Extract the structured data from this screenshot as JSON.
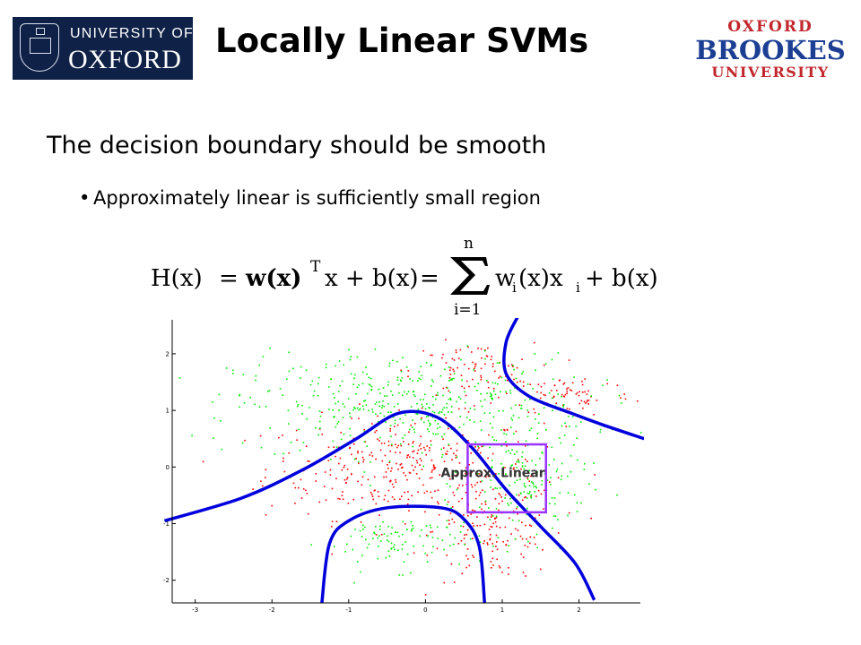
{
  "logos": {
    "oxford": {
      "line1": "UNIVERSITY OF",
      "line2": "OXFORD",
      "bg": "#0f2147"
    },
    "brookes": {
      "line1": "OXFORD",
      "line2": "BROOKES",
      "line3": "UNIVERSITY",
      "red": "#c2272d",
      "blue": "#1c3f94"
    }
  },
  "slide": {
    "title": "Locally Linear SVMs",
    "heading": "The decision boundary should be smooth",
    "bullet": "Approximately linear is sufficiently small region",
    "bullet_marker": "•"
  },
  "formula": {
    "lhs": "H(x)",
    "eq1": "=",
    "term1": "w(x)",
    "sup_T": "T",
    "term2": "x + b(x)",
    "eq2": "=",
    "sum_upper": "n",
    "sum_lower": "i=1",
    "sum_body": "w",
    "sum_body_sub": "i",
    "sum_body2": "(x)x",
    "sum_body2_sub": "i",
    "tail": "+ b(x)"
  },
  "chart_data": {
    "type": "scatter",
    "title": "",
    "xlabel": "",
    "ylabel": "",
    "xlim": [
      -3.3,
      2.8
    ],
    "ylim": [
      -2.4,
      2.6
    ],
    "x_ticks": [
      "-3",
      "-2",
      "-1",
      "0",
      "1",
      "2"
    ],
    "x_tick_values": [
      -3,
      -2,
      -1,
      0,
      1,
      2
    ],
    "y_ticks": [
      "2",
      "1",
      "0",
      "-1",
      "-2"
    ],
    "y_tick_values": [
      2,
      1,
      0,
      -1,
      -2
    ],
    "series": [
      {
        "color": "#ff0000",
        "clusters": [
          {
            "cx": -0.3,
            "cy": 0.0,
            "rx": 1.8,
            "ry": 0.9
          },
          {
            "cx": 0.9,
            "cy": -1.1,
            "rx": 0.8,
            "ry": 0.9
          },
          {
            "cx": 0.6,
            "cy": 1.7,
            "rx": 0.8,
            "ry": 0.5
          },
          {
            "cx": 1.9,
            "cy": 1.3,
            "rx": 0.8,
            "ry": 0.4
          }
        ]
      },
      {
        "color": "#00ee00",
        "clusters": [
          {
            "cx": -0.2,
            "cy": 1.1,
            "rx": 2.3,
            "ry": 0.9
          },
          {
            "cx": -0.3,
            "cy": -1.3,
            "rx": 1.0,
            "ry": 0.5
          },
          {
            "cx": 1.3,
            "cy": -0.3,
            "rx": 0.8,
            "ry": 0.9
          }
        ]
      }
    ],
    "boundaries": [
      {
        "name": "outer",
        "points": [
          [
            -3.4,
            -0.95
          ],
          [
            -2.4,
            -0.55
          ],
          [
            -1.6,
            -0.05
          ],
          [
            -0.9,
            0.5
          ],
          [
            -0.35,
            0.95
          ],
          [
            0.15,
            0.88
          ],
          [
            0.6,
            0.35
          ],
          [
            1.05,
            -0.4
          ],
          [
            1.5,
            -1.05
          ],
          [
            1.95,
            -1.7
          ],
          [
            2.2,
            -2.35
          ]
        ]
      },
      {
        "name": "inner",
        "points": [
          [
            -1.35,
            -2.4
          ],
          [
            -1.25,
            -1.35
          ],
          [
            -1.0,
            -0.95
          ],
          [
            -0.5,
            -0.72
          ],
          [
            0.2,
            -0.72
          ],
          [
            0.5,
            -0.92
          ],
          [
            0.7,
            -1.4
          ],
          [
            0.77,
            -2.4
          ]
        ]
      },
      {
        "name": "right",
        "points": [
          [
            1.2,
            2.65
          ],
          [
            1.05,
            2.2
          ],
          [
            1.05,
            1.65
          ],
          [
            1.35,
            1.25
          ],
          [
            1.9,
            0.95
          ],
          [
            2.3,
            0.75
          ],
          [
            2.85,
            0.5
          ]
        ]
      }
    ],
    "box": {
      "x0": 0.55,
      "x1": 1.57,
      "y0": -0.8,
      "y1": 0.4,
      "color": "#9933ff"
    },
    "annotation": {
      "text": "Approx. Linear",
      "x": 0.2,
      "y": -0.18
    },
    "boundary_color": "#0000dd"
  }
}
